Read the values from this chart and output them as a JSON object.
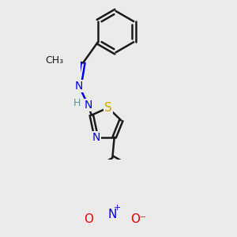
{
  "background_color": "#ebebeb",
  "bond_color": "#1a1a1a",
  "bond_width": 1.8,
  "atom_colors": {
    "N": "#0000ee",
    "S": "#ccaa00",
    "O": "#ee0000",
    "C": "#1a1a1a",
    "H": "#4a9a9a"
  },
  "font_size": 10,
  "figsize": [
    3.0,
    3.0
  ],
  "dpi": 100
}
